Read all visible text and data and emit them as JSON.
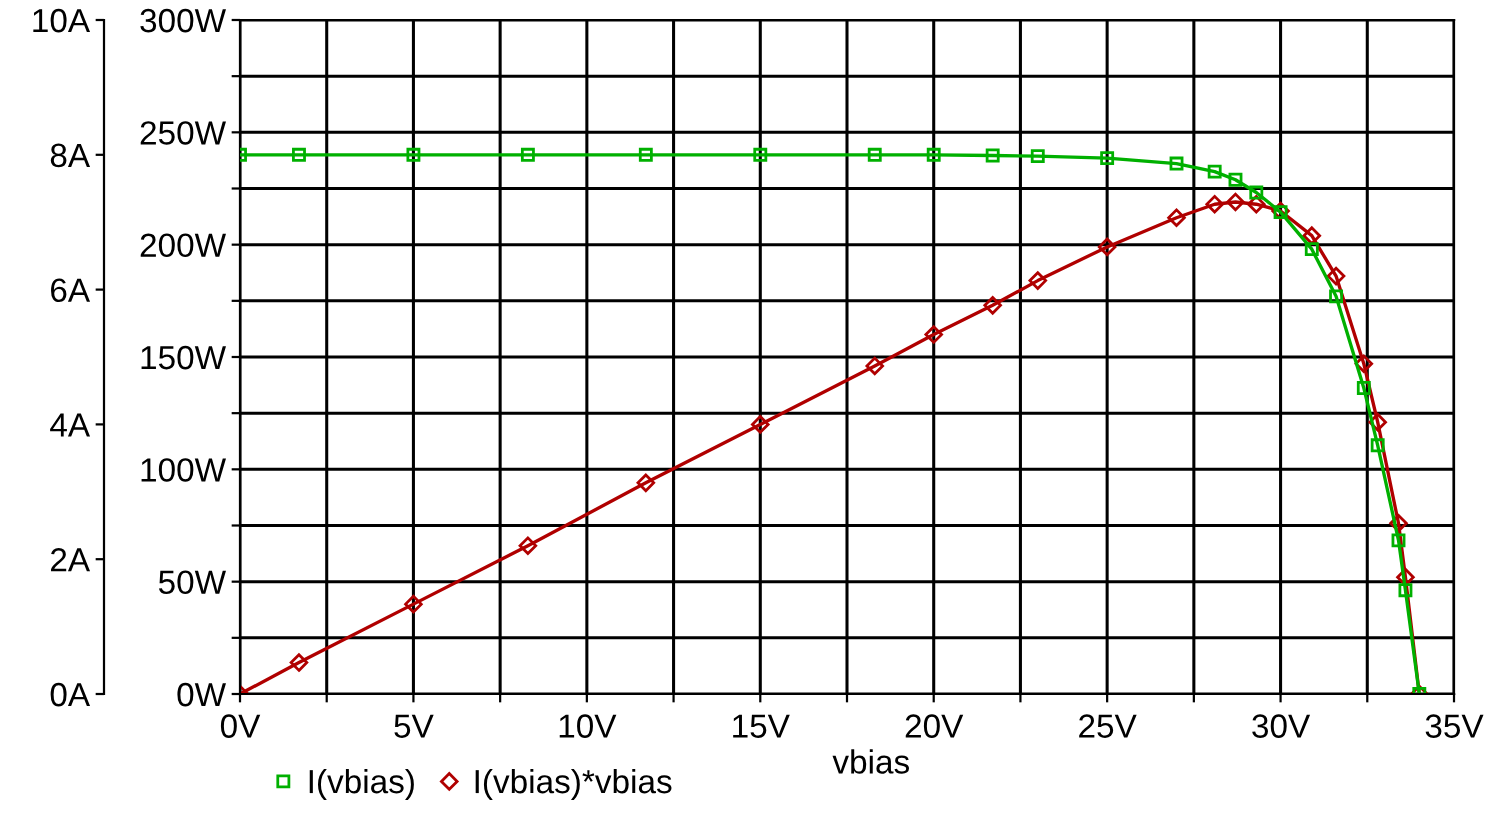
{
  "chart_data": {
    "type": "line",
    "xlabel": "vbias",
    "x": [
      0,
      1.7,
      5,
      8.3,
      11.7,
      15,
      18.3,
      20,
      21.7,
      23,
      25,
      27,
      28.1,
      28.7,
      29.3,
      30,
      30.9,
      31.6,
      32.4,
      32.8,
      33.4,
      33.6,
      34.0
    ],
    "series": [
      {
        "name": "I(vbias)",
        "color": "#00b000",
        "axis": "y2",
        "marker": "square",
        "values": [
          8.0,
          8.0,
          8.0,
          8.0,
          8.0,
          8.0,
          8.0,
          8.0,
          7.99,
          7.98,
          7.95,
          7.87,
          7.75,
          7.63,
          7.44,
          7.15,
          6.6,
          5.9,
          4.54,
          3.69,
          2.28,
          1.54,
          0
        ]
      },
      {
        "name": "I(vbias)*vbias",
        "color": "#b00000",
        "marker": "diamond",
        "values": [
          0,
          14,
          40,
          66,
          94,
          120,
          146,
          160,
          173,
          184,
          199,
          212,
          218,
          219,
          218,
          215,
          204,
          186,
          147,
          121,
          76,
          52,
          0
        ]
      }
    ],
    "xlim": [
      0,
      35
    ],
    "xticks": [
      {
        "value": 0,
        "label": "0V"
      },
      {
        "value": 2.5,
        "label": null
      },
      {
        "value": 5,
        "label": "5V"
      },
      {
        "value": 7.5,
        "label": null
      },
      {
        "value": 10,
        "label": "10V"
      },
      {
        "value": 12.5,
        "label": null
      },
      {
        "value": 15,
        "label": "15V"
      },
      {
        "value": 17.5,
        "label": null
      },
      {
        "value": 20,
        "label": "20V"
      },
      {
        "value": 22.5,
        "label": null
      },
      {
        "value": 25,
        "label": "25V"
      },
      {
        "value": 27.5,
        "label": null
      },
      {
        "value": 30,
        "label": "30V"
      },
      {
        "value": 32.5,
        "label": null
      },
      {
        "value": 35,
        "label": "35V"
      }
    ],
    "ylim": [
      0,
      300
    ],
    "yticks": [
      {
        "value": 0,
        "label": "0W"
      },
      {
        "value": 25,
        "label": null
      },
      {
        "value": 50,
        "label": "50W"
      },
      {
        "value": 75,
        "label": null
      },
      {
        "value": 100,
        "label": "100W"
      },
      {
        "value": 125,
        "label": null
      },
      {
        "value": 150,
        "label": "150W"
      },
      {
        "value": 175,
        "label": null
      },
      {
        "value": 200,
        "label": "200W"
      },
      {
        "value": 225,
        "label": null
      },
      {
        "value": 250,
        "label": "250W"
      },
      {
        "value": 275,
        "label": null
      },
      {
        "value": 300,
        "label": "300W"
      }
    ],
    "y2lim": [
      0,
      10
    ],
    "y2ticks": [
      {
        "value": 0,
        "label": "0A"
      },
      {
        "value": 2,
        "label": "2A"
      },
      {
        "value": 4,
        "label": "4A"
      },
      {
        "value": 6,
        "label": "6A"
      },
      {
        "value": 8,
        "label": "8A"
      },
      {
        "value": 10,
        "label": "10A"
      }
    ],
    "grid": true,
    "legend": "bottom left",
    "line_style": "solid"
  }
}
